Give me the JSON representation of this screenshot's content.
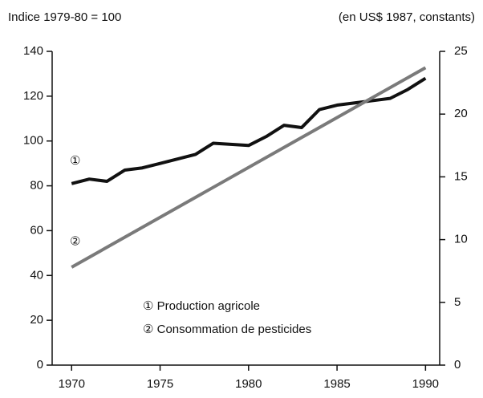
{
  "chart_data": {
    "type": "line",
    "ylabel": "Indice 1979-80 = 100",
    "y2label": "(en US$ 1987, constants)",
    "xlim": [
      1968.9,
      1990.8
    ],
    "xticks": [
      1970,
      1975,
      1980,
      1985,
      1990
    ],
    "ylim": [
      0,
      140
    ],
    "yticks": [
      0,
      20,
      40,
      60,
      80,
      100,
      120,
      140
    ],
    "y2lim": [
      0,
      25
    ],
    "y2ticks": [
      0,
      5,
      10,
      15,
      20,
      25
    ],
    "series": [
      {
        "name": "① Production agricole",
        "color": "#111111",
        "x": [
          1970,
          1971,
          1972,
          1973,
          1974,
          1975,
          1976,
          1977,
          1978,
          1979,
          1980,
          1981,
          1982,
          1983,
          1984,
          1985,
          1986,
          1987,
          1988,
          1989,
          1990
        ],
        "values": [
          81,
          83,
          82,
          87,
          88,
          90,
          92,
          94,
          99,
          98.5,
          98,
          102,
          107,
          106,
          114,
          116,
          117,
          118,
          119,
          123,
          128
        ]
      },
      {
        "name": "② Consommation de pesticides",
        "color": "#7a7a7a",
        "axis": "y2",
        "x": [
          1970,
          1990
        ],
        "values": [
          7.8,
          23.7
        ]
      }
    ],
    "annotations": [
      {
        "text": "①",
        "x": 1970.2,
        "y": 91
      },
      {
        "text": "②",
        "x": 1970.2,
        "y": 55
      }
    ]
  }
}
